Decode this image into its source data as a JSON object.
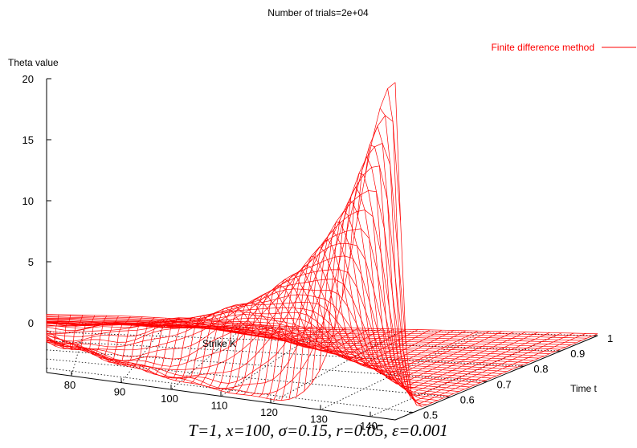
{
  "chart_data": {
    "type": "surface",
    "title": "Number of trials=2e+04",
    "zlabel": "Theta value",
    "xlabel": "Strike K",
    "ylabel": "Time t",
    "x_ticks": [
      "80",
      "90",
      "100",
      "110",
      "120",
      "130",
      "140"
    ],
    "y_ticks": [
      "0.5",
      "0.6",
      "0.7",
      "0.8",
      "0.9",
      "1"
    ],
    "z_ticks": [
      "0",
      "5",
      "10",
      "15",
      "20"
    ],
    "xlim": [
      75,
      145
    ],
    "ylim": [
      0.45,
      1.0
    ],
    "zlim": [
      0,
      20
    ],
    "grid": true,
    "legend_position": "top-right",
    "series": [
      {
        "name": "Finite difference method",
        "color": "#ff0000",
        "description_points": [
          {
            "K": 75,
            "t": 0.45,
            "theta": 3.6
          },
          {
            "K": 100,
            "t": 0.45,
            "theta": 5.0
          },
          {
            "K": 110,
            "t": 0.45,
            "theta": 7.0
          },
          {
            "K": 120,
            "t": 0.45,
            "theta": 9.0
          },
          {
            "K": 130,
            "t": 0.45,
            "theta": 11.5
          },
          {
            "K": 145,
            "t": 0.45,
            "theta": 21.0
          },
          {
            "K": 145,
            "t": 0.7,
            "theta": 1.0
          },
          {
            "K": 145,
            "t": 1.0,
            "theta": 0.5
          },
          {
            "K": 75,
            "t": 1.0,
            "theta": 0.0
          }
        ]
      }
    ],
    "caption": "T=1, x=100, σ=0.15, r=0.05, ε=0.001"
  }
}
